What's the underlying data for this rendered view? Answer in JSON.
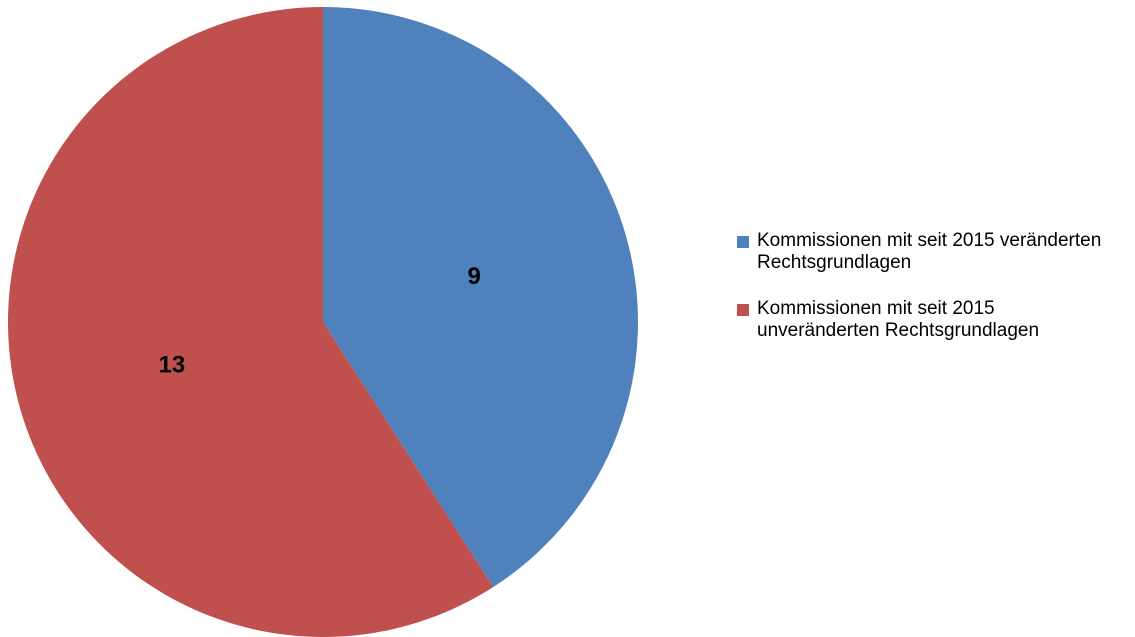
{
  "chart_data": {
    "type": "pie",
    "categories": [
      "Kommissionen mit seit 2015 veränderten Rechtsgrundlagen",
      "Kommissionen mit seit 2015 unveränderten Rechtsgrundlagen"
    ],
    "values": [
      9,
      13
    ],
    "colors": [
      "#4f81bd",
      "#c0504d"
    ],
    "legend": "right"
  }
}
